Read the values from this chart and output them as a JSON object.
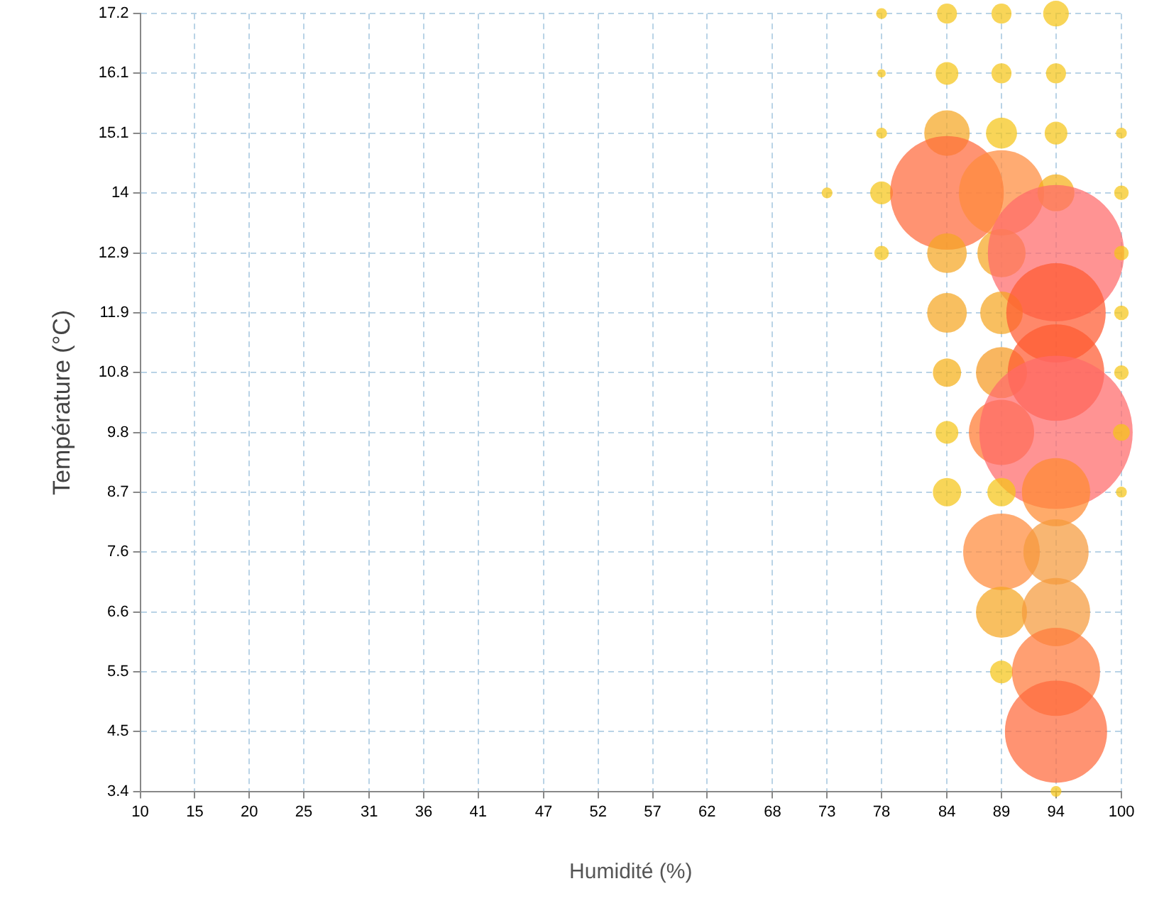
{
  "chart_data": {
    "type": "bubble",
    "xlabel": "Humidité (%)",
    "ylabel": "Température (°C)",
    "xlim": [
      10,
      100
    ],
    "ylim": [
      3.4,
      17.2
    ],
    "xticks": [
      10,
      15,
      20,
      25,
      31,
      36,
      41,
      47,
      52,
      57,
      62,
      68,
      73,
      78,
      84,
      89,
      94,
      100
    ],
    "yticks": [
      3.4,
      {
        "value": 4.46,
        "label": "4.5"
      },
      {
        "value": 5.52,
        "label": "5.5"
      },
      {
        "value": 6.58,
        "label": "6.6"
      },
      {
        "value": 7.65,
        "label": "7.6"
      },
      {
        "value": 8.71,
        "label": "8.7"
      },
      {
        "value": 9.77,
        "label": "9.8"
      },
      {
        "value": 10.83,
        "label": "10.8"
      },
      {
        "value": 11.89,
        "label": "11.9"
      },
      {
        "value": 12.95,
        "label": "12.9"
      },
      {
        "value": 14.02,
        "label": "14"
      },
      {
        "value": 15.08,
        "label": "15.1"
      },
      {
        "value": 16.14,
        "label": "16.1"
      },
      17.2
    ],
    "grid": true,
    "line_style": "dashed",
    "legend": false,
    "series": [
      {
        "x": [
          78,
          84,
          89,
          94,
          78,
          84,
          89,
          94,
          78,
          84,
          89,
          94,
          100,
          73,
          78,
          84,
          89,
          94,
          100,
          78,
          84,
          89,
          94,
          100,
          84,
          89,
          94,
          100,
          84,
          89,
          94,
          100,
          84,
          89,
          94,
          100,
          84,
          89,
          94,
          100,
          89,
          94,
          89,
          94,
          89,
          94,
          94,
          94
        ],
        "values": [
          17.2,
          17.2,
          17.2,
          17.2,
          16.14,
          16.14,
          16.14,
          16.14,
          15.08,
          15.08,
          15.08,
          15.08,
          15.08,
          14.02,
          14.02,
          14.02,
          14.02,
          14.02,
          14.02,
          12.95,
          12.95,
          12.95,
          12.95,
          12.95,
          11.89,
          11.89,
          11.89,
          11.89,
          10.83,
          10.83,
          10.83,
          10.83,
          9.77,
          9.77,
          9.77,
          9.77,
          8.71,
          8.71,
          8.71,
          8.71,
          7.65,
          7.65,
          6.58,
          6.58,
          5.52,
          5.52,
          4.46,
          3.4
        ],
        "sizes": [
          0.005,
          0.017,
          0.017,
          0.028,
          0.003,
          0.022,
          0.017,
          0.017,
          0.005,
          0.088,
          0.041,
          0.022,
          0.005,
          0.005,
          0.022,
          0.549,
          0.309,
          0.058,
          0.009,
          0.009,
          0.067,
          0.099,
          0.79,
          0.009,
          0.067,
          0.077,
          0.42,
          0.009,
          0.034,
          0.111,
          0.396,
          0.009,
          0.022,
          0.181,
          1,
          0.012,
          0.034,
          0.034,
          0.198,
          0.005,
          0.25,
          0.181,
          0.111,
          0.198,
          0.022,
          0.33,
          0.444,
          0.005
        ],
        "colors": [
          "#f5c518",
          "#f5c518",
          "#f5c518",
          "#f5c518",
          "#f5c518",
          "#f5c518",
          "#f5c518",
          "#f5c518",
          "#f5c518",
          "#f5a623",
          "#f5c518",
          "#f5c518",
          "#f5c518",
          "#f5c518",
          "#f5c518",
          "#ff6a3c",
          "#ff8a3c",
          "#f5b018",
          "#f5c518",
          "#f5c518",
          "#f5a623",
          "#f5a623",
          "#ff6a6a",
          "#f5c518",
          "#f5a623",
          "#f5a623",
          "#ff5a30",
          "#f5c518",
          "#f5b018",
          "#f59a23",
          "#ff5a30",
          "#f5c518",
          "#f5c518",
          "#ff7a30",
          "#ff6a6a",
          "#f5c518",
          "#f5c518",
          "#f5c518",
          "#ff8a30",
          "#f5c518",
          "#ff8a3c",
          "#f59a3c",
          "#f5a623",
          "#f59a3c",
          "#f5c518",
          "#ff7a3c",
          "#ff6a3c",
          "#f5c518"
        ]
      }
    ]
  }
}
